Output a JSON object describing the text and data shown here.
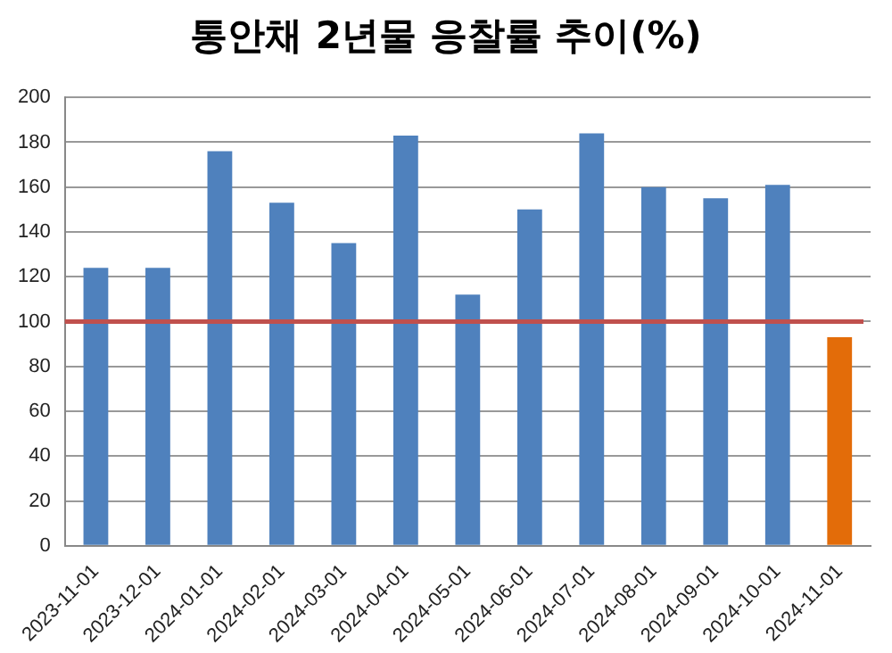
{
  "chart_data": {
    "type": "bar",
    "title": "통안채 2년물 응찰률 추이(%)",
    "categories": [
      "2023-11-01",
      "2023-12-01",
      "2024-01-01",
      "2024-02-01",
      "2024-03-01",
      "2024-04-01",
      "2024-05-01",
      "2024-06-01",
      "2024-07-01",
      "2024-08-01",
      "2024-09-01",
      "2024-10-01",
      "2024-11-01"
    ],
    "values": [
      124,
      124,
      176,
      153,
      135,
      183,
      112,
      150,
      184,
      160,
      155,
      161,
      93
    ],
    "colors": [
      "#4f81bd",
      "#4f81bd",
      "#4f81bd",
      "#4f81bd",
      "#4f81bd",
      "#4f81bd",
      "#4f81bd",
      "#4f81bd",
      "#4f81bd",
      "#4f81bd",
      "#4f81bd",
      "#4f81bd",
      "#e36c09"
    ],
    "ylim": [
      0,
      200
    ],
    "yticks": [
      0,
      20,
      40,
      60,
      80,
      100,
      120,
      140,
      160,
      180,
      200
    ],
    "grid": "y",
    "legend": false,
    "ref_lines": [
      {
        "axis": "y",
        "value": 100,
        "color": "#c0504d"
      }
    ]
  }
}
